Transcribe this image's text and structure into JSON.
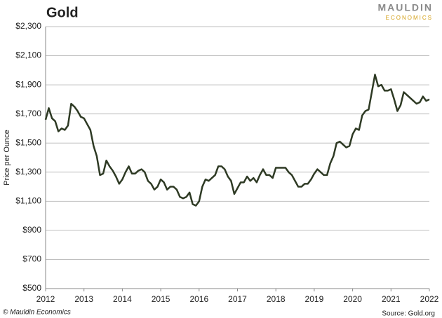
{
  "chart_data": {
    "type": "line",
    "title": "Gold",
    "ylabel": "Price per Ounce",
    "logo": [
      "MAULDIN",
      "ECONOMICS"
    ],
    "copyright": "© Mauldin Economics",
    "source": "Source: Gold.org",
    "xlim": [
      2012,
      2022
    ],
    "xticks": [
      2012,
      2013,
      2014,
      2015,
      2016,
      2017,
      2018,
      2019,
      2020,
      2021,
      2022
    ],
    "ylim": [
      500,
      2300
    ],
    "yticks": [
      {
        "value": 500,
        "label": "$500"
      },
      {
        "value": 700,
        "label": "$700"
      },
      {
        "value": 900,
        "label": "$900"
      },
      {
        "value": 1100,
        "label": "$1,100"
      },
      {
        "value": 1300,
        "label": "$1,300"
      },
      {
        "value": 1500,
        "label": "$1,500"
      },
      {
        "value": 1700,
        "label": "$1,700"
      },
      {
        "value": 1900,
        "label": "$1,900"
      },
      {
        "value": 2100,
        "label": "$2,100"
      },
      {
        "value": 2300,
        "label": "$2,300"
      }
    ],
    "grid": true,
    "x": [
      2012,
      2012.083,
      2012.167,
      2012.25,
      2012.333,
      2012.417,
      2012.5,
      2012.583,
      2012.667,
      2012.75,
      2012.833,
      2012.917,
      2013,
      2013.083,
      2013.167,
      2013.25,
      2013.333,
      2013.417,
      2013.5,
      2013.583,
      2013.667,
      2013.75,
      2013.833,
      2013.917,
      2014,
      2014.083,
      2014.167,
      2014.25,
      2014.333,
      2014.417,
      2014.5,
      2014.583,
      2014.667,
      2014.75,
      2014.833,
      2014.917,
      2015,
      2015.083,
      2015.167,
      2015.25,
      2015.333,
      2015.417,
      2015.5,
      2015.583,
      2015.667,
      2015.75,
      2015.833,
      2015.917,
      2016,
      2016.083,
      2016.167,
      2016.25,
      2016.333,
      2016.417,
      2016.5,
      2016.583,
      2016.667,
      2016.75,
      2016.833,
      2016.917,
      2017,
      2017.083,
      2017.167,
      2017.25,
      2017.333,
      2017.417,
      2017.5,
      2017.583,
      2017.667,
      2017.75,
      2017.833,
      2017.917,
      2018,
      2018.083,
      2018.167,
      2018.25,
      2018.333,
      2018.417,
      2018.5,
      2018.583,
      2018.667,
      2018.75,
      2018.833,
      2018.917,
      2019,
      2019.083,
      2019.167,
      2019.25,
      2019.333,
      2019.417,
      2019.5,
      2019.583,
      2019.667,
      2019.75,
      2019.833,
      2019.917,
      2020,
      2020.083,
      2020.167,
      2020.25,
      2020.333,
      2020.417,
      2020.5,
      2020.583,
      2020.667,
      2020.75,
      2020.833,
      2020.917,
      2021,
      2021.083,
      2021.167,
      2021.25,
      2021.333,
      2021.417,
      2021.5,
      2021.583,
      2021.667,
      2021.75,
      2021.833,
      2021.917,
      2022
    ],
    "series": [
      {
        "name": "Gold",
        "color": "#2e3a24",
        "values": [
          1660,
          1740,
          1670,
          1650,
          1580,
          1600,
          1590,
          1620,
          1770,
          1750,
          1720,
          1680,
          1670,
          1630,
          1590,
          1480,
          1410,
          1280,
          1290,
          1380,
          1340,
          1310,
          1270,
          1220,
          1250,
          1300,
          1340,
          1290,
          1290,
          1310,
          1320,
          1300,
          1240,
          1220,
          1180,
          1200,
          1250,
          1230,
          1180,
          1200,
          1200,
          1180,
          1130,
          1120,
          1130,
          1160,
          1080,
          1070,
          1100,
          1200,
          1250,
          1240,
          1260,
          1280,
          1340,
          1340,
          1320,
          1270,
          1240,
          1150,
          1190,
          1230,
          1230,
          1270,
          1240,
          1260,
          1230,
          1280,
          1320,
          1280,
          1280,
          1260,
          1330,
          1330,
          1330,
          1330,
          1300,
          1280,
          1240,
          1200,
          1200,
          1220,
          1220,
          1250,
          1290,
          1320,
          1300,
          1280,
          1280,
          1360,
          1410,
          1500,
          1510,
          1490,
          1470,
          1480,
          1560,
          1600,
          1590,
          1690,
          1720,
          1730,
          1850,
          1970,
          1890,
          1900,
          1860,
          1860,
          1870,
          1800,
          1720,
          1760,
          1850,
          1830,
          1810,
          1790,
          1770,
          1780,
          1820,
          1790,
          1800
        ]
      }
    ]
  }
}
